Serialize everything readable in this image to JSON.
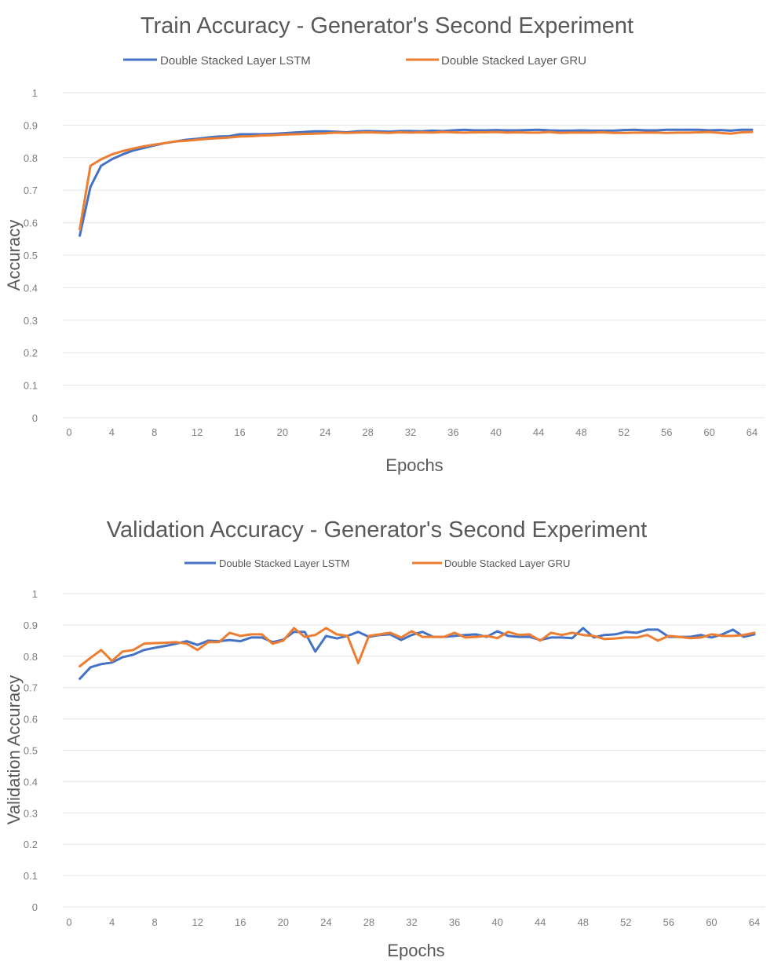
{
  "colors": {
    "lstm": "#4472c4",
    "gru": "#ed7d31"
  },
  "chart_data": [
    {
      "type": "line",
      "title": "Train Accuracy - Generator's Second Experiment",
      "xlabel": "Epochs",
      "ylabel": "Accuracy",
      "xlim": [
        0,
        64
      ],
      "ylim": [
        0,
        1
      ],
      "grid": true,
      "legend_position": "top",
      "x_ticks": [
        "0",
        "4",
        "8",
        "12",
        "16",
        "20",
        "24",
        "28",
        "32",
        "36",
        "40",
        "44",
        "48",
        "52",
        "56",
        "60",
        "64"
      ],
      "y_ticks": [
        "0",
        "0.1",
        "0.2",
        "0.3",
        "0.4",
        "0.5",
        "0.6",
        "0.7",
        "0.8",
        "0.9",
        "1"
      ],
      "x": [
        1,
        2,
        3,
        4,
        5,
        6,
        7,
        8,
        9,
        10,
        11,
        12,
        13,
        14,
        15,
        16,
        17,
        18,
        19,
        20,
        21,
        22,
        23,
        24,
        25,
        26,
        27,
        28,
        29,
        30,
        31,
        32,
        33,
        34,
        35,
        36,
        37,
        38,
        39,
        40,
        41,
        42,
        43,
        44,
        45,
        46,
        47,
        48,
        49,
        50,
        51,
        52,
        53,
        54,
        55,
        56,
        57,
        58,
        59,
        60,
        61,
        62,
        63,
        64
      ],
      "series": [
        {
          "name": "Double Stacked Layer LSTM",
          "color_key": "lstm",
          "values": [
            0.56,
            0.71,
            0.775,
            0.795,
            0.81,
            0.822,
            0.83,
            0.838,
            0.845,
            0.85,
            0.855,
            0.858,
            0.862,
            0.865,
            0.866,
            0.872,
            0.872,
            0.872,
            0.873,
            0.875,
            0.877,
            0.879,
            0.881,
            0.881,
            0.88,
            0.878,
            0.881,
            0.882,
            0.881,
            0.88,
            0.882,
            0.882,
            0.881,
            0.883,
            0.882,
            0.884,
            0.886,
            0.884,
            0.884,
            0.885,
            0.884,
            0.884,
            0.885,
            0.886,
            0.884,
            0.883,
            0.883,
            0.884,
            0.883,
            0.883,
            0.883,
            0.885,
            0.886,
            0.884,
            0.884,
            0.886,
            0.886,
            0.886,
            0.886,
            0.884,
            0.885,
            0.883,
            0.886,
            0.886
          ]
        },
        {
          "name": "Double Stacked Layer GRU",
          "color_key": "gru",
          "values": [
            0.58,
            0.775,
            0.795,
            0.81,
            0.82,
            0.828,
            0.835,
            0.84,
            0.845,
            0.85,
            0.852,
            0.855,
            0.858,
            0.86,
            0.862,
            0.865,
            0.866,
            0.868,
            0.869,
            0.871,
            0.872,
            0.873,
            0.874,
            0.875,
            0.877,
            0.876,
            0.877,
            0.878,
            0.877,
            0.876,
            0.878,
            0.877,
            0.878,
            0.877,
            0.879,
            0.878,
            0.877,
            0.878,
            0.878,
            0.879,
            0.877,
            0.878,
            0.877,
            0.877,
            0.879,
            0.876,
            0.877,
            0.877,
            0.877,
            0.878,
            0.876,
            0.876,
            0.877,
            0.877,
            0.877,
            0.876,
            0.877,
            0.877,
            0.878,
            0.879,
            0.876,
            0.874,
            0.878,
            0.879
          ]
        }
      ]
    },
    {
      "type": "line",
      "title": "Validation Accuracy - Generator's Second Experiment",
      "xlabel": "Epochs",
      "ylabel": "Validation Accuracy",
      "xlim": [
        0,
        64
      ],
      "ylim": [
        0,
        1
      ],
      "grid": true,
      "legend_position": "top",
      "x_ticks": [
        "0",
        "4",
        "8",
        "12",
        "16",
        "20",
        "24",
        "28",
        "32",
        "36",
        "40",
        "44",
        "48",
        "52",
        "56",
        "60",
        "64"
      ],
      "y_ticks": [
        "0",
        "0.1",
        "0.2",
        "0.3",
        "0.4",
        "0.5",
        "0.6",
        "0.7",
        "0.8",
        "0.9",
        "1"
      ],
      "x": [
        1,
        2,
        3,
        4,
        5,
        6,
        7,
        8,
        9,
        10,
        11,
        12,
        13,
        14,
        15,
        16,
        17,
        18,
        19,
        20,
        21,
        22,
        23,
        24,
        25,
        26,
        27,
        28,
        29,
        30,
        31,
        32,
        33,
        34,
        35,
        36,
        37,
        38,
        39,
        40,
        41,
        42,
        43,
        44,
        45,
        46,
        47,
        48,
        49,
        50,
        51,
        52,
        53,
        54,
        55,
        56,
        57,
        58,
        59,
        60,
        61,
        62,
        63,
        64
      ],
      "series": [
        {
          "name": "Double Stacked Layer LSTM",
          "color_key": "lstm",
          "values": [
            0.728,
            0.765,
            0.775,
            0.78,
            0.797,
            0.805,
            0.82,
            0.827,
            0.833,
            0.84,
            0.848,
            0.836,
            0.85,
            0.848,
            0.852,
            0.848,
            0.86,
            0.86,
            0.845,
            0.853,
            0.878,
            0.878,
            0.815,
            0.865,
            0.857,
            0.865,
            0.878,
            0.862,
            0.868,
            0.87,
            0.852,
            0.868,
            0.878,
            0.862,
            0.862,
            0.865,
            0.868,
            0.87,
            0.862,
            0.88,
            0.865,
            0.862,
            0.862,
            0.852,
            0.86,
            0.86,
            0.858,
            0.89,
            0.86,
            0.868,
            0.87,
            0.878,
            0.875,
            0.885,
            0.885,
            0.862,
            0.862,
            0.862,
            0.868,
            0.86,
            0.87,
            0.885,
            0.862,
            0.87
          ]
        },
        {
          "name": "Double Stacked Layer GRU",
          "color_key": "gru",
          "values": [
            0.768,
            0.795,
            0.82,
            0.785,
            0.815,
            0.82,
            0.84,
            0.842,
            0.843,
            0.845,
            0.84,
            0.82,
            0.845,
            0.845,
            0.875,
            0.865,
            0.87,
            0.87,
            0.84,
            0.85,
            0.89,
            0.862,
            0.868,
            0.89,
            0.87,
            0.865,
            0.778,
            0.865,
            0.87,
            0.875,
            0.86,
            0.88,
            0.862,
            0.862,
            0.862,
            0.875,
            0.86,
            0.862,
            0.865,
            0.858,
            0.878,
            0.868,
            0.87,
            0.85,
            0.875,
            0.868,
            0.875,
            0.868,
            0.865,
            0.855,
            0.857,
            0.86,
            0.86,
            0.868,
            0.85,
            0.865,
            0.862,
            0.858,
            0.86,
            0.87,
            0.865,
            0.865,
            0.868,
            0.875
          ]
        }
      ]
    }
  ]
}
